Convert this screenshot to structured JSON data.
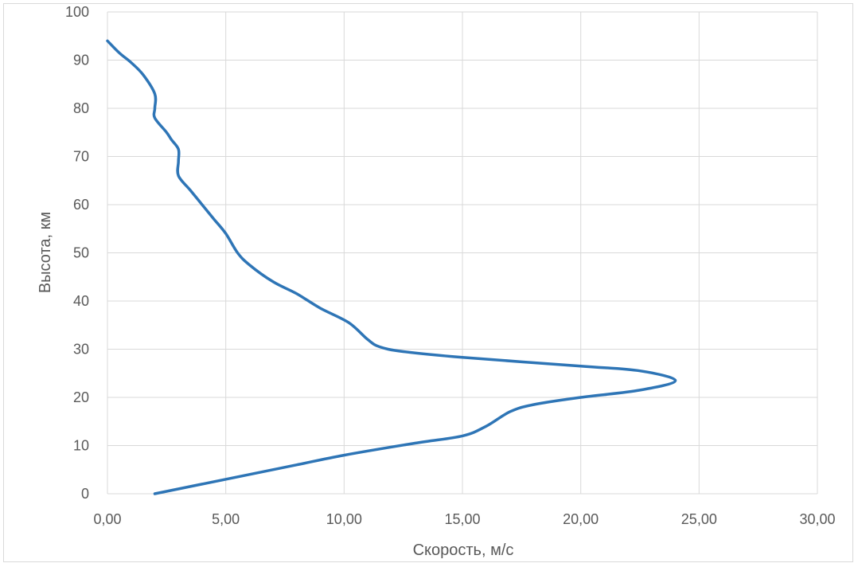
{
  "chart_data": {
    "type": "line",
    "title": "",
    "xlabel": "Скорость, м/с",
    "ylabel": "Высота, км",
    "xlim": [
      0,
      30
    ],
    "ylim": [
      0,
      100
    ],
    "x_ticks": [
      "0,00",
      "5,00",
      "10,00",
      "15,00",
      "20,00",
      "25,00",
      "30,00"
    ],
    "y_ticks": [
      "0",
      "10",
      "20",
      "30",
      "40",
      "50",
      "60",
      "70",
      "80",
      "90",
      "100"
    ],
    "grid": true,
    "legend": "none",
    "series": [
      {
        "color": "#2e75b6",
        "points": [
          [
            2.0,
            0
          ],
          [
            4.0,
            2
          ],
          [
            6.0,
            4
          ],
          [
            8.0,
            6
          ],
          [
            10.0,
            8
          ],
          [
            13.0,
            10.5
          ],
          [
            15.0,
            12
          ],
          [
            16.0,
            14
          ],
          [
            17.0,
            17
          ],
          [
            18.0,
            18.5
          ],
          [
            20.0,
            20
          ],
          [
            22.5,
            21.5
          ],
          [
            24.0,
            23.5
          ],
          [
            22.5,
            25.5
          ],
          [
            20.0,
            26.5
          ],
          [
            15.0,
            28.3
          ],
          [
            12.5,
            29.5
          ],
          [
            11.5,
            30.5
          ],
          [
            11.0,
            32
          ],
          [
            10.2,
            35.5
          ],
          [
            9.0,
            38.5
          ],
          [
            8.0,
            41.5
          ],
          [
            7.0,
            44
          ],
          [
            6.0,
            47.5
          ],
          [
            5.5,
            50
          ],
          [
            5.0,
            54
          ],
          [
            4.5,
            57
          ],
          [
            4.0,
            60
          ],
          [
            3.5,
            63
          ],
          [
            3.0,
            66
          ],
          [
            3.0,
            69
          ],
          [
            3.0,
            71.5
          ],
          [
            2.7,
            73.5
          ],
          [
            2.5,
            75
          ],
          [
            2.0,
            78
          ],
          [
            2.0,
            80
          ],
          [
            2.0,
            83
          ],
          [
            1.5,
            87
          ],
          [
            1.0,
            89.5
          ],
          [
            0.5,
            91.5
          ],
          [
            0.0,
            94
          ]
        ]
      }
    ]
  }
}
